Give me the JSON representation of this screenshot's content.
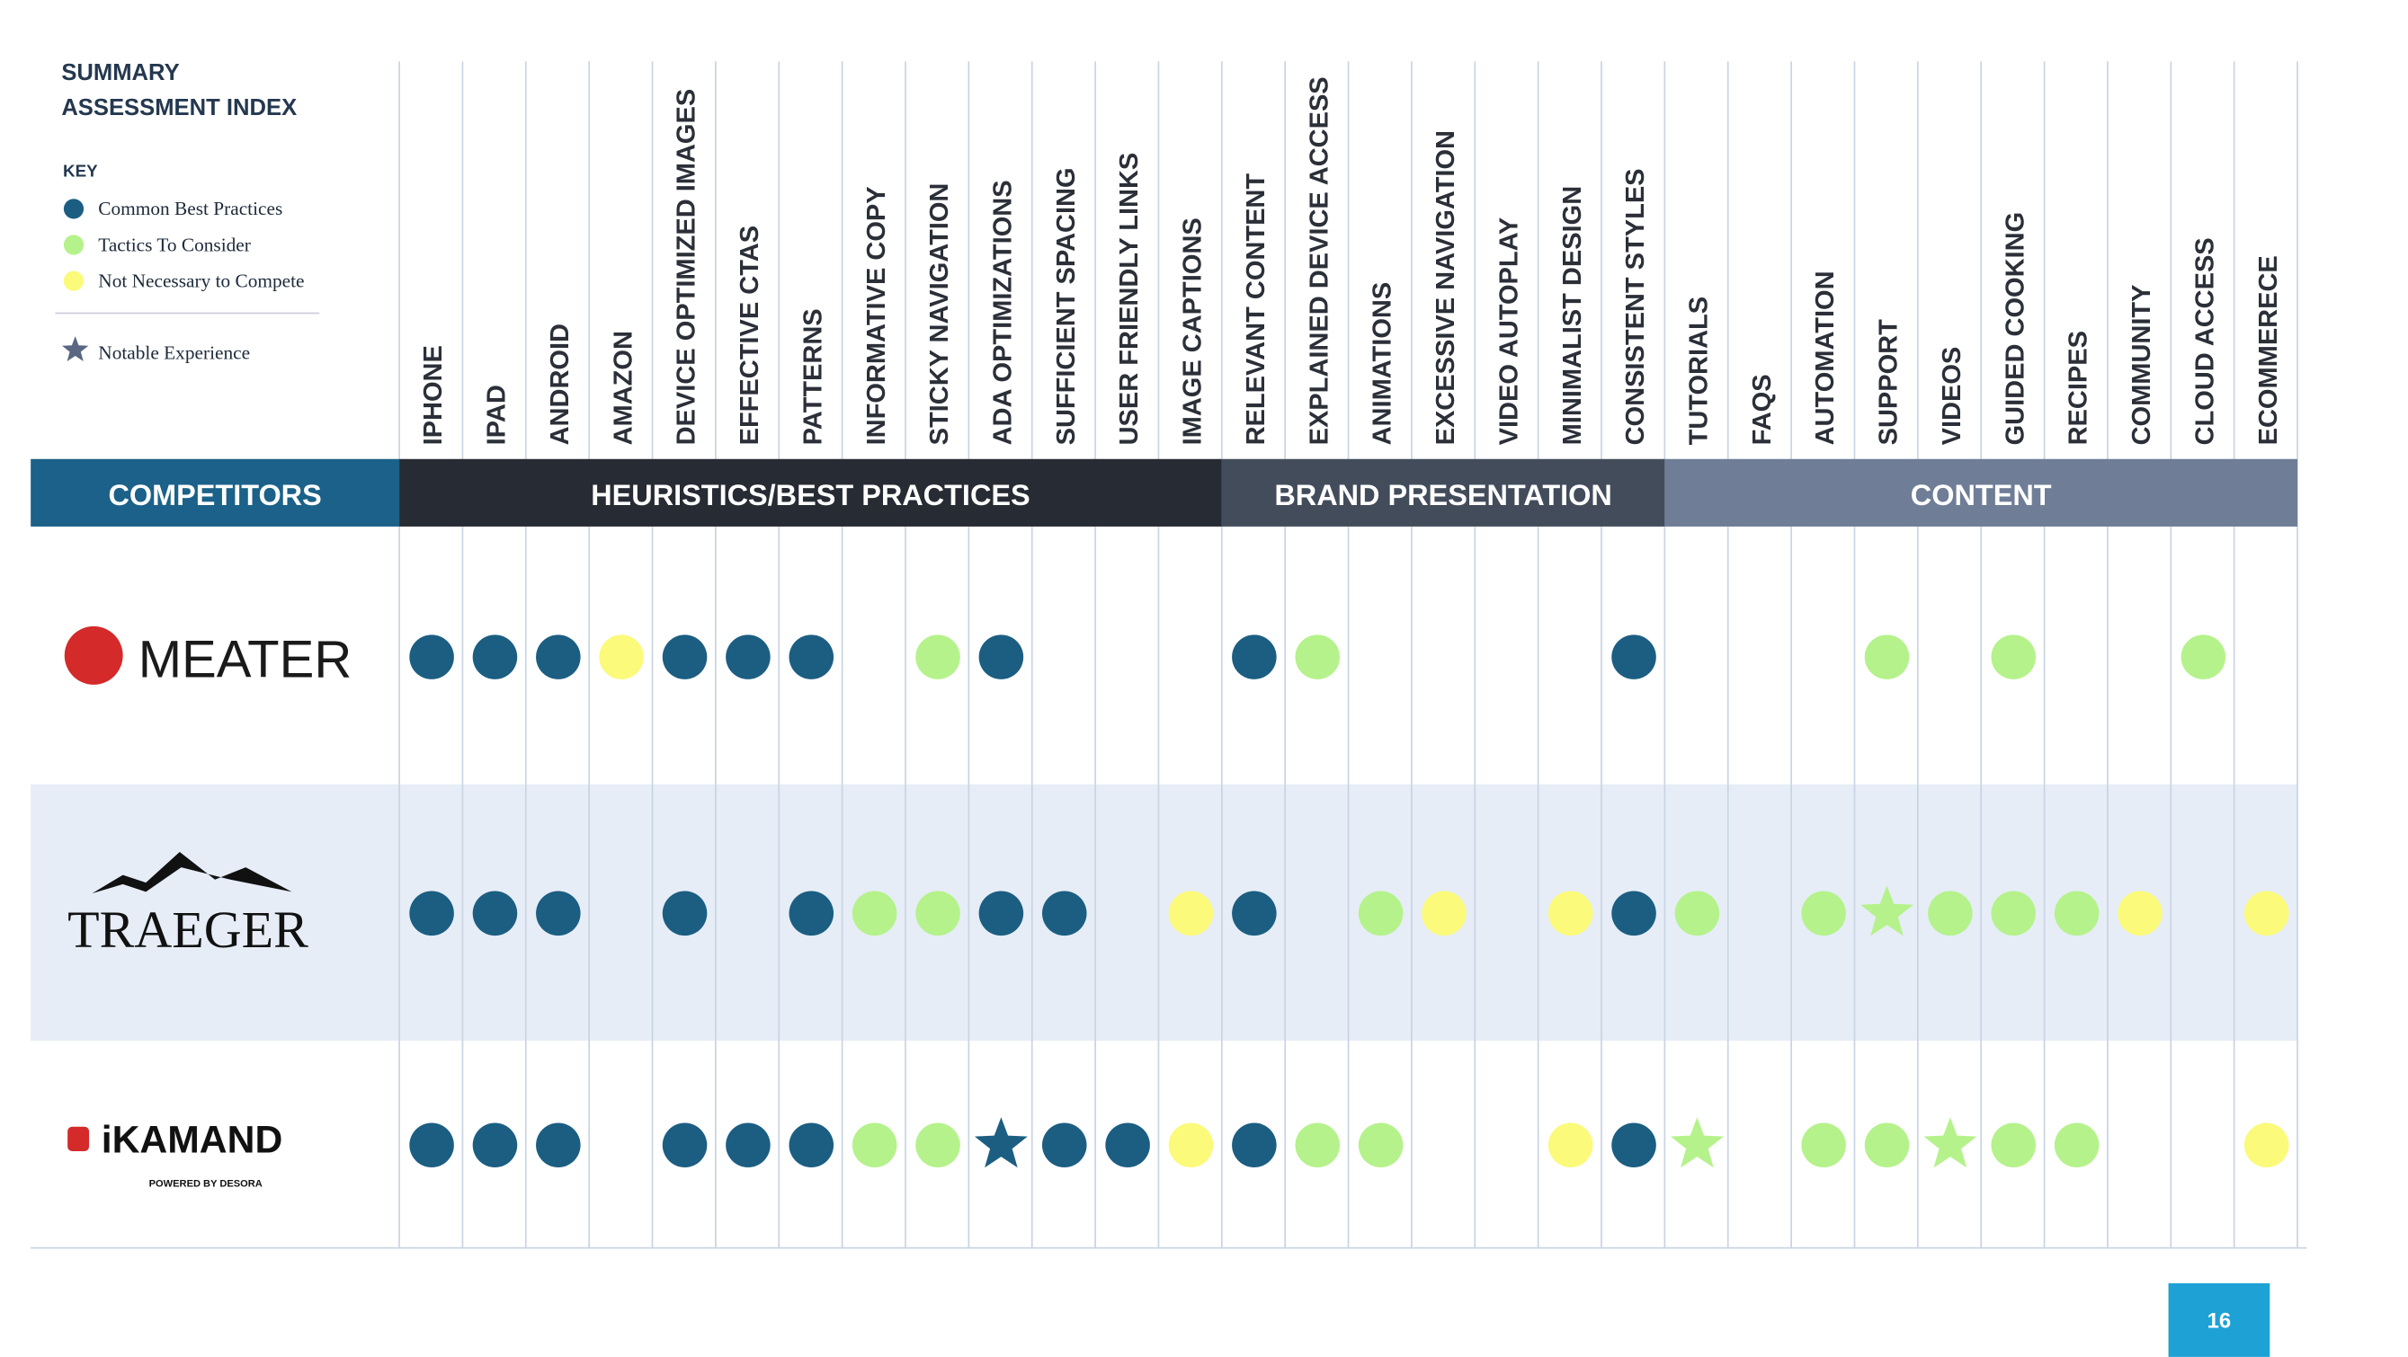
{
  "header": {
    "title_lines": [
      "SUMMARY",
      "ASSESSMENT INDEX"
    ]
  },
  "key": {
    "title": "KEY",
    "items": [
      {
        "label": "Common Best Practices",
        "mark": "best"
      },
      {
        "label": "Tactics To Consider",
        "mark": "tactic"
      },
      {
        "label": "Not Necessary to Compete",
        "mark": "not"
      }
    ],
    "notable": "Notable Experience"
  },
  "styles": {
    "best": "#1b5e82",
    "tactic": "#b5f28b",
    "not": "#fbfa7a",
    "notable": "#5a6782"
  },
  "groups": [
    {
      "label": "COMPETITORS",
      "color": "#1b6189"
    },
    {
      "label": "HEURISTICS/BEST PRACTICES",
      "span": 13,
      "color": "#272b33"
    },
    {
      "label": "BRAND PRESENTATION",
      "span": 7,
      "color": "#434c5b"
    },
    {
      "label": "CONTENT",
      "span": 10,
      "color": "#6f7d96"
    }
  ],
  "columns": [
    "IPHONE",
    "IPAD",
    "ANDROID",
    "AMAZON",
    "DEVICE OPTIMIZED IMAGES",
    "EFFECTIVE CTAS",
    "PATTERNS",
    "INFORMATIVE COPY",
    "STICKY NAVIGATION",
    "ADA OPTIMIZATIONS",
    "SUFFICIENT SPACING",
    "USER FRIENDLY LINKS",
    "IMAGE CAPTIONS",
    "RELEVANT CONTENT",
    "EXPLAINED DEVICE ACCESS",
    "ANIMATIONS",
    "EXCESSIVE NAVIGATION",
    "VIDEO AUTOPLAY",
    "MINIMALIST DESIGN",
    "CONSISTENT STYLES",
    "TUTORIALS",
    "FAQS",
    "AUTOMATION",
    "SUPPORT",
    "VIDEOS",
    "GUIDED COOKING",
    "RECIPES",
    "COMMUNITY",
    "CLOUD ACCESS",
    "ECOMMERECE"
  ],
  "rows": [
    {
      "name": "MEATER",
      "cells": [
        "best",
        "best",
        "best",
        "not",
        "best",
        "best",
        "best",
        null,
        "tactic",
        "best",
        null,
        null,
        null,
        "best",
        "tactic",
        null,
        null,
        null,
        null,
        "best",
        null,
        null,
        null,
        "tactic",
        null,
        "tactic",
        null,
        null,
        "tactic",
        null
      ]
    },
    {
      "name": "TRAEGER",
      "cells": [
        "best",
        "best",
        "best",
        null,
        "best",
        null,
        "best",
        "tactic",
        "tactic",
        "best",
        "best",
        null,
        "not",
        "best",
        null,
        "tactic",
        "not",
        null,
        "not",
        "best",
        "tactic",
        null,
        "tactic",
        "tactic-star",
        "tactic",
        "tactic",
        "tactic",
        "not",
        null,
        "not"
      ]
    },
    {
      "name": "iKAMAND",
      "tagline": "POWERED BY DESORA",
      "cells": [
        "best",
        "best",
        "best",
        null,
        "best",
        "best",
        "best",
        "tactic",
        "tactic",
        "best-star",
        "best",
        "best",
        "not",
        "best",
        "tactic",
        "tactic",
        null,
        null,
        "not",
        "best",
        "tactic-star",
        null,
        "tactic",
        "tactic",
        "tactic-star",
        "tactic",
        "tactic",
        null,
        null,
        "not"
      ]
    }
  ],
  "page_number": "16"
}
